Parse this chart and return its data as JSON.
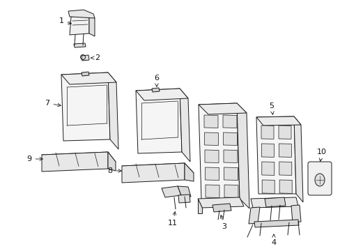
{
  "bg_color": "#ffffff",
  "line_color": "#1a1a1a",
  "figsize": [
    4.89,
    3.6
  ],
  "dpi": 100,
  "xlim": [
    0,
    489
  ],
  "ylim": [
    0,
    360
  ]
}
